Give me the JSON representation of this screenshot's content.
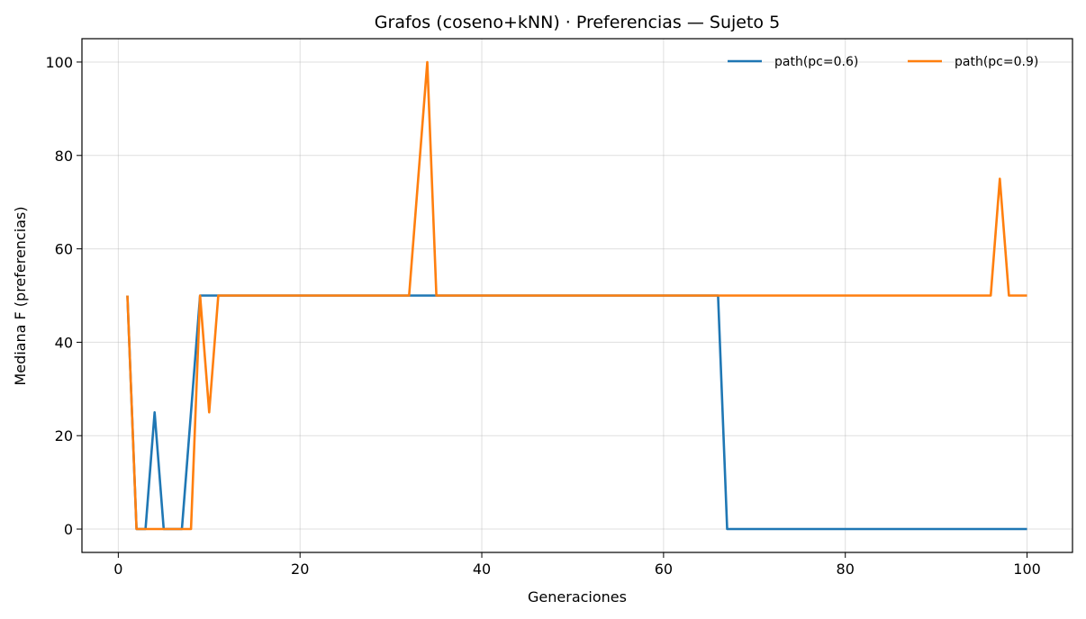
{
  "chart_data": {
    "type": "line",
    "title": "Grafos (coseno+kNN) · Preferencias — Sujeto 5",
    "xlabel": "Generaciones",
    "ylabel": "Mediana F (preferencias)",
    "xlim": [
      -4,
      105
    ],
    "ylim": [
      -5,
      105
    ],
    "xticks": [
      0,
      20,
      40,
      60,
      80,
      100
    ],
    "yticks": [
      0,
      20,
      40,
      60,
      80,
      100
    ],
    "grid": true,
    "legend_position": "top-right",
    "series": [
      {
        "name": "path(pc=0.6)",
        "color": "#1f77b4",
        "x": [
          1,
          2,
          3,
          4,
          5,
          6,
          7,
          8,
          9,
          10,
          11,
          12,
          13,
          14,
          15,
          16,
          17,
          18,
          19,
          20,
          21,
          22,
          23,
          24,
          25,
          26,
          27,
          28,
          29,
          30,
          31,
          32,
          33,
          34,
          35,
          36,
          37,
          38,
          39,
          40,
          41,
          42,
          43,
          44,
          45,
          46,
          47,
          48,
          49,
          50,
          51,
          52,
          53,
          54,
          55,
          56,
          57,
          58,
          59,
          60,
          61,
          62,
          63,
          64,
          65,
          66,
          67,
          68,
          69,
          70,
          71,
          72,
          73,
          74,
          75,
          76,
          77,
          78,
          79,
          80,
          81,
          82,
          83,
          84,
          85,
          86,
          87,
          88,
          89,
          90,
          91,
          92,
          93,
          94,
          95,
          96,
          97,
          98,
          99,
          100
        ],
        "y": [
          50,
          0,
          0,
          25,
          0,
          0,
          0,
          25,
          50,
          50,
          50,
          50,
          50,
          50,
          50,
          50,
          50,
          50,
          50,
          50,
          50,
          50,
          50,
          50,
          50,
          50,
          50,
          50,
          50,
          50,
          50,
          50,
          50,
          50,
          50,
          50,
          50,
          50,
          50,
          50,
          50,
          50,
          50,
          50,
          50,
          50,
          50,
          50,
          50,
          50,
          50,
          50,
          50,
          50,
          50,
          50,
          50,
          50,
          50,
          50,
          50,
          50,
          50,
          50,
          50,
          50,
          0,
          0,
          0,
          0,
          0,
          0,
          0,
          0,
          0,
          0,
          0,
          0,
          0,
          0,
          0,
          0,
          0,
          0,
          0,
          0,
          0,
          0,
          0,
          0,
          0,
          0,
          0,
          0,
          0,
          0,
          0,
          0,
          0,
          0
        ]
      },
      {
        "name": "path(pc=0.9)",
        "color": "#ff7f0e",
        "x": [
          1,
          2,
          3,
          4,
          5,
          6,
          7,
          8,
          9,
          10,
          11,
          12,
          13,
          14,
          15,
          16,
          17,
          18,
          19,
          20,
          21,
          22,
          23,
          24,
          25,
          26,
          27,
          28,
          29,
          30,
          31,
          32,
          33,
          34,
          35,
          36,
          37,
          38,
          39,
          40,
          41,
          42,
          43,
          44,
          45,
          46,
          47,
          48,
          49,
          50,
          51,
          52,
          53,
          54,
          55,
          56,
          57,
          58,
          59,
          60,
          61,
          62,
          63,
          64,
          65,
          66,
          67,
          68,
          69,
          70,
          71,
          72,
          73,
          74,
          75,
          76,
          77,
          78,
          79,
          80,
          81,
          82,
          83,
          84,
          85,
          86,
          87,
          88,
          89,
          90,
          91,
          92,
          93,
          94,
          95,
          96,
          97,
          98,
          99,
          100
        ],
        "y": [
          50,
          0,
          0,
          0,
          0,
          0,
          0,
          0,
          50,
          25,
          50,
          50,
          50,
          50,
          50,
          50,
          50,
          50,
          50,
          50,
          50,
          50,
          50,
          50,
          50,
          50,
          50,
          50,
          50,
          50,
          50,
          50,
          75,
          100,
          50,
          50,
          50,
          50,
          50,
          50,
          50,
          50,
          50,
          50,
          50,
          50,
          50,
          50,
          50,
          50,
          50,
          50,
          50,
          50,
          50,
          50,
          50,
          50,
          50,
          50,
          50,
          50,
          50,
          50,
          50,
          50,
          50,
          50,
          50,
          50,
          50,
          50,
          50,
          50,
          50,
          50,
          50,
          50,
          50,
          50,
          50,
          50,
          50,
          50,
          50,
          50,
          50,
          50,
          50,
          50,
          50,
          50,
          50,
          50,
          50,
          50,
          75,
          50,
          50,
          50
        ]
      }
    ]
  }
}
